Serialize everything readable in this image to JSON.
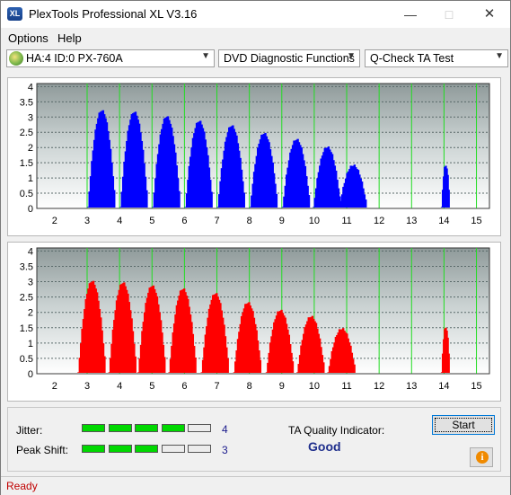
{
  "window": {
    "title": "PlexTools Professional XL V3.16",
    "icon_text": "XL"
  },
  "menu": [
    {
      "label": "Options"
    },
    {
      "label": "Help"
    }
  ],
  "toolbar": {
    "drive": "HA:4 ID:0  PX-760A",
    "function": "DVD Diagnostic Functions",
    "test": "Q-Check TA Test"
  },
  "charts": {
    "x_ticks": [
      "2",
      "3",
      "4",
      "5",
      "6",
      "7",
      "8",
      "9",
      "10",
      "11",
      "12",
      "13",
      "14",
      "15"
    ],
    "y_ticks": [
      "4",
      "3.5",
      "3",
      "2.5",
      "2",
      "1.5",
      "1",
      "0.5",
      "0"
    ]
  },
  "chart_data": [
    {
      "type": "bar",
      "name": "top",
      "color": "#0000ff",
      "x_range": [
        1.45,
        15.4
      ],
      "ylim": [
        0,
        4.1
      ],
      "grid": true,
      "peaks": [
        {
          "x": 3.45,
          "h": 3.2
        },
        {
          "x": 4.45,
          "h": 3.15
        },
        {
          "x": 5.45,
          "h": 3.0
        },
        {
          "x": 6.45,
          "h": 2.85
        },
        {
          "x": 7.45,
          "h": 2.7
        },
        {
          "x": 8.45,
          "h": 2.45
        },
        {
          "x": 9.45,
          "h": 2.25
        },
        {
          "x": 10.4,
          "h": 2.0
        },
        {
          "x": 11.2,
          "h": 1.4
        },
        {
          "x": 14.05,
          "h": 1.4
        }
      ]
    },
    {
      "type": "bar",
      "name": "bottom",
      "color": "#ff0000",
      "x_range": [
        1.45,
        15.4
      ],
      "ylim": [
        0,
        4.1
      ],
      "grid": true,
      "peaks": [
        {
          "x": 3.15,
          "h": 3.0
        },
        {
          "x": 4.1,
          "h": 2.95
        },
        {
          "x": 5.0,
          "h": 2.85
        },
        {
          "x": 5.95,
          "h": 2.75
        },
        {
          "x": 6.95,
          "h": 2.6
        },
        {
          "x": 7.95,
          "h": 2.3
        },
        {
          "x": 8.95,
          "h": 2.05
        },
        {
          "x": 9.9,
          "h": 1.85
        },
        {
          "x": 10.85,
          "h": 1.45
        },
        {
          "x": 14.05,
          "h": 1.5
        }
      ]
    }
  ],
  "panel": {
    "jitter_label": "Jitter:",
    "jitter_value": "4",
    "jitter_level": 4,
    "peak_label": "Peak Shift:",
    "peak_value": "3",
    "peak_level": 3,
    "segments_total": 5,
    "ta_label": "TA Quality Indicator:",
    "ta_value": "Good",
    "start_label": "Start"
  },
  "status": {
    "text": "Ready",
    "color": "#c00000"
  }
}
